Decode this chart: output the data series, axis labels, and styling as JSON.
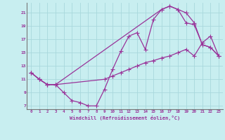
{
  "xlabel": "Windchill (Refroidissement éolien,°C)",
  "bg_color": "#c8eef0",
  "line_color": "#993399",
  "grid_color": "#a8d8dc",
  "xlim": [
    -0.5,
    23.5
  ],
  "ylim": [
    6.5,
    22.5
  ],
  "xticks": [
    0,
    1,
    2,
    3,
    4,
    5,
    6,
    7,
    8,
    9,
    10,
    11,
    12,
    13,
    14,
    15,
    16,
    17,
    18,
    19,
    20,
    21,
    22,
    23
  ],
  "yticks": [
    7,
    9,
    11,
    13,
    15,
    17,
    19,
    21
  ],
  "line1_x": [
    0,
    1,
    2,
    3,
    4,
    5,
    6,
    7,
    8,
    9,
    10,
    11,
    12,
    13,
    14,
    15,
    16,
    17,
    18,
    19,
    20,
    21,
    22,
    23
  ],
  "line1_y": [
    12.0,
    11.0,
    10.2,
    10.2,
    9.0,
    7.8,
    7.5,
    7.0,
    7.0,
    9.5,
    12.5,
    15.2,
    17.5,
    18.0,
    15.5,
    20.0,
    21.5,
    22.0,
    21.5,
    21.0,
    19.5,
    16.2,
    15.8,
    14.5
  ],
  "line2_x": [
    0,
    1,
    2,
    3,
    16,
    17,
    18,
    19,
    20,
    21,
    22,
    23
  ],
  "line2_y": [
    12.0,
    11.0,
    10.2,
    10.2,
    21.5,
    22.0,
    21.5,
    19.5,
    19.2,
    16.2,
    15.8,
    14.5
  ],
  "line3_x": [
    0,
    1,
    2,
    3,
    9,
    10,
    11,
    12,
    13,
    14,
    15,
    16,
    17,
    18,
    19,
    20,
    21,
    22,
    23
  ],
  "line3_y": [
    12.0,
    11.0,
    10.2,
    10.2,
    11.0,
    11.5,
    12.0,
    12.5,
    13.0,
    13.5,
    13.8,
    14.2,
    14.5,
    15.0,
    15.5,
    14.5,
    16.5,
    17.5,
    14.5
  ],
  "marker": "+",
  "markersize": 4.0,
  "linewidth": 0.9
}
